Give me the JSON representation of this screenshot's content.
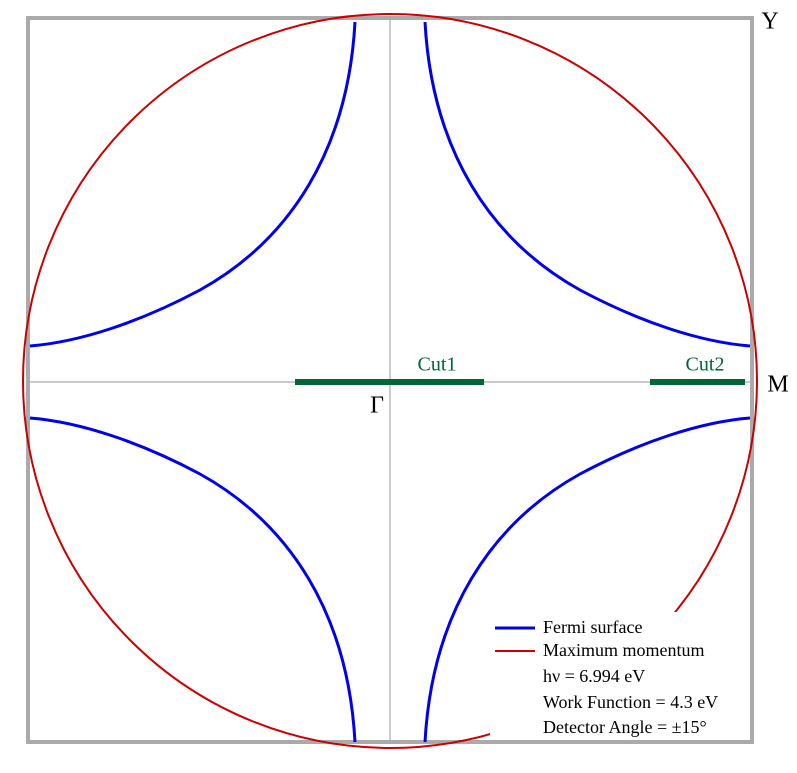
{
  "axes": {
    "y_label": "Y",
    "m_label": "M",
    "gamma_label": "Γ"
  },
  "cuts": [
    {
      "label": "Cut1"
    },
    {
      "label": "Cut2"
    }
  ],
  "legend": [
    {
      "label": "Fermi surface"
    },
    {
      "label": "Maximum momentum"
    }
  ],
  "annotations": [
    "hν = 6.994 eV",
    "Work Function = 4.3 eV",
    "Detector Angle = ±15°"
  ]
}
